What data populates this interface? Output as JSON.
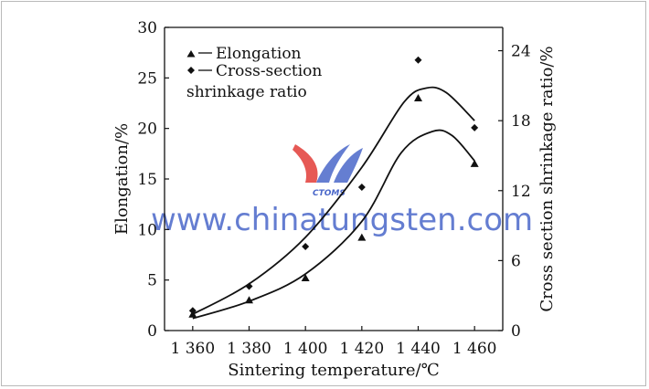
{
  "chart_data": {
    "type": "line",
    "x": [
      1360,
      1380,
      1400,
      1420,
      1440,
      1460
    ],
    "x_tick_labels": [
      "1 360",
      "1 380",
      "1 400",
      "1 420",
      "1 440",
      "1 460"
    ],
    "xlim": [
      1350,
      1470
    ],
    "xlabel": "Sintering temperature/℃",
    "y_left": {
      "label": "Elongation/%",
      "ylim": [
        0,
        30
      ],
      "ticks": [
        0,
        5,
        10,
        15,
        20,
        25,
        30
      ]
    },
    "y_right": {
      "label": "Cross section shrinkage ratio/%",
      "ylim": [
        0,
        26
      ],
      "ticks": [
        0,
        6,
        12,
        18,
        24
      ]
    },
    "series": [
      {
        "name": "Elongation",
        "marker": "triangle",
        "axis": "left",
        "values": [
          1.6,
          3.0,
          5.2,
          9.2,
          23.0,
          16.5
        ],
        "fit_curve": [
          [
            1360,
            1.2
          ],
          [
            1380,
            2.9
          ],
          [
            1400,
            5.6
          ],
          [
            1420,
            10.8
          ],
          [
            1434,
            17.6
          ],
          [
            1445,
            19.7
          ],
          [
            1452,
            19.3
          ],
          [
            1460,
            16.8
          ]
        ]
      },
      {
        "name": "Cross-section shrinkage ratio",
        "marker": "diamond",
        "axis": "right",
        "values": [
          1.7,
          3.8,
          7.2,
          12.3,
          23.2,
          17.4
        ],
        "fit_curve": [
          [
            1360,
            1.4
          ],
          [
            1380,
            4.0
          ],
          [
            1400,
            8.0
          ],
          [
            1420,
            14.0
          ],
          [
            1435,
            19.6
          ],
          [
            1443,
            20.8
          ],
          [
            1450,
            20.4
          ],
          [
            1460,
            18.0
          ]
        ]
      }
    ],
    "legend": {
      "placement": "top-left",
      "entries": [
        "Elongation",
        "Cross-section",
        "shrinkage ratio"
      ]
    },
    "grid": false
  },
  "watermark": {
    "logo_text": "CTOMS",
    "url_text": "www.chinatungsten.com",
    "color": "#4a67c9",
    "accent_color": "#e0302a"
  }
}
